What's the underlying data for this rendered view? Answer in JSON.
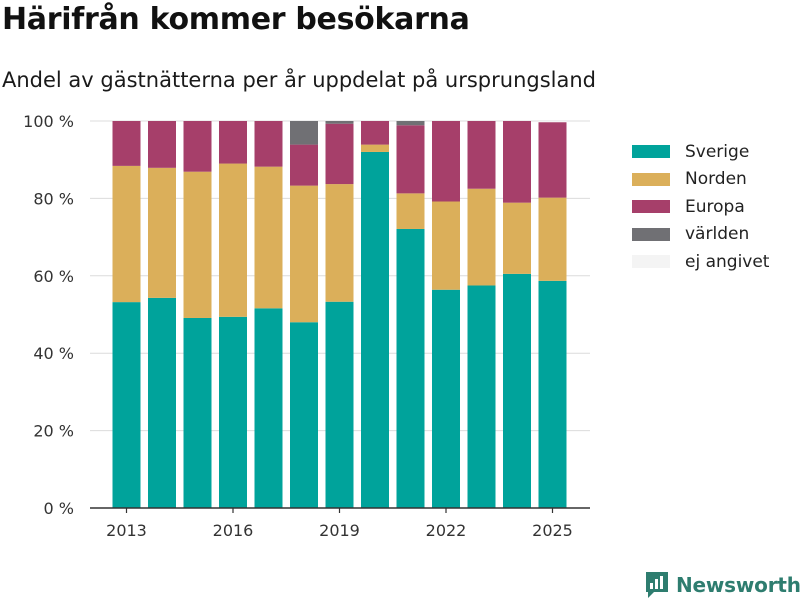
{
  "chart_data": {
    "type": "bar",
    "stacked": true,
    "title": "Härifrån kommer besökarna",
    "subtitle": "Andel av gästnätterna per år uppdelat på ursprungsland",
    "years": [
      2013,
      2014,
      2015,
      2016,
      2017,
      2018,
      2019,
      2020,
      2021,
      2022,
      2023,
      2024,
      2025
    ],
    "x_ticks": [
      "2013",
      "2016",
      "2019",
      "2022",
      "2025"
    ],
    "y_ticks": [
      "0 %",
      "20 %",
      "40 %",
      "60 %",
      "80 %",
      "100 %"
    ],
    "ylim": [
      0,
      100
    ],
    "grid": true,
    "legend_position": "right",
    "series": [
      {
        "name": "Sverige",
        "color": "#00a39b",
        "values": [
          53.2,
          54.3,
          49.1,
          49.4,
          51.6,
          48.0,
          53.3,
          92.0,
          72.1,
          56.4,
          57.5,
          60.5,
          58.7
        ]
      },
      {
        "name": "Norden",
        "color": "#dbaf5a",
        "values": [
          35.2,
          33.6,
          37.8,
          39.6,
          36.6,
          35.3,
          30.4,
          1.9,
          9.2,
          22.8,
          25.0,
          18.4,
          21.5
        ]
      },
      {
        "name": "Europa",
        "color": "#a63f6a",
        "values": [
          11.6,
          12.1,
          13.1,
          11.0,
          11.8,
          10.6,
          15.6,
          6.1,
          17.6,
          20.8,
          17.5,
          21.1,
          19.5
        ]
      },
      {
        "name": "världen",
        "color": "#707074",
        "values": [
          0,
          0,
          0,
          0,
          0,
          6.1,
          0.7,
          0,
          1.1,
          0,
          0,
          0,
          0
        ]
      },
      {
        "name": "ej angivet",
        "color": "#f4f4f4",
        "values": [
          0,
          0,
          0,
          0,
          0,
          0,
          0,
          0,
          0,
          0,
          0,
          0,
          0.3
        ]
      }
    ]
  },
  "brand": {
    "label": "Newsworthy",
    "color": "#2e7d6f",
    "icon": "newsworthy-logo-icon"
  }
}
